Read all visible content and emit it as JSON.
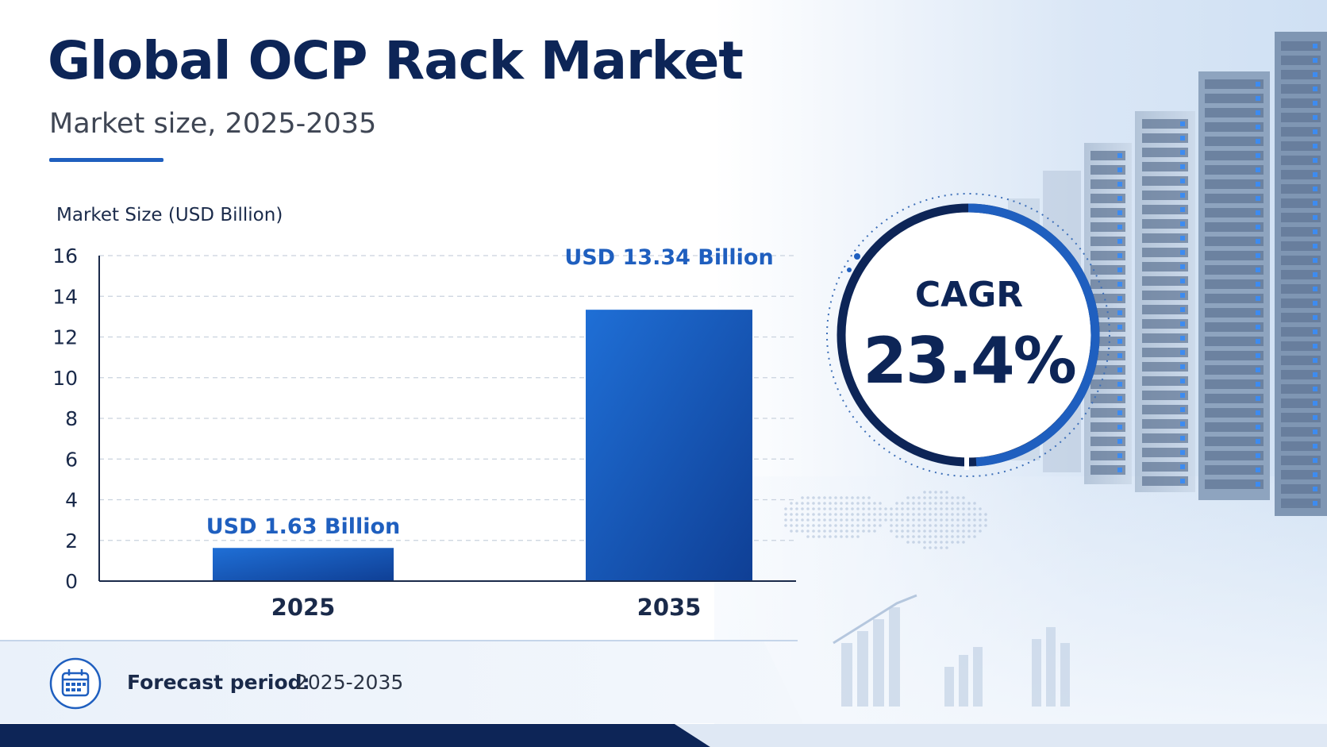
{
  "header": {
    "title": "Global OCP Rack Market",
    "subtitle": "Market size, 2025-2035"
  },
  "colors": {
    "navy": "#0d2557",
    "bar_light": "#1f6fd6",
    "bar_dark": "#0f3f95",
    "accent": "#1f5fbf"
  },
  "chart_data": {
    "type": "bar",
    "ylabel": "Market Size (USD Billion)",
    "xlabel": "",
    "categories": [
      "2025",
      "2035"
    ],
    "values": [
      1.63,
      13.34
    ],
    "data_labels": [
      "USD 1.63 Billion",
      "USD 13.34 Billion"
    ],
    "ylim": [
      0,
      16
    ],
    "yticks": [
      0,
      2,
      4,
      6,
      8,
      10,
      12,
      14,
      16
    ],
    "grid": true
  },
  "cagr": {
    "label": "CAGR",
    "value": "23.4%"
  },
  "footer": {
    "icon": "calendar-icon",
    "forecast_label": "Forecast period:",
    "forecast_value": "2025-2035"
  }
}
